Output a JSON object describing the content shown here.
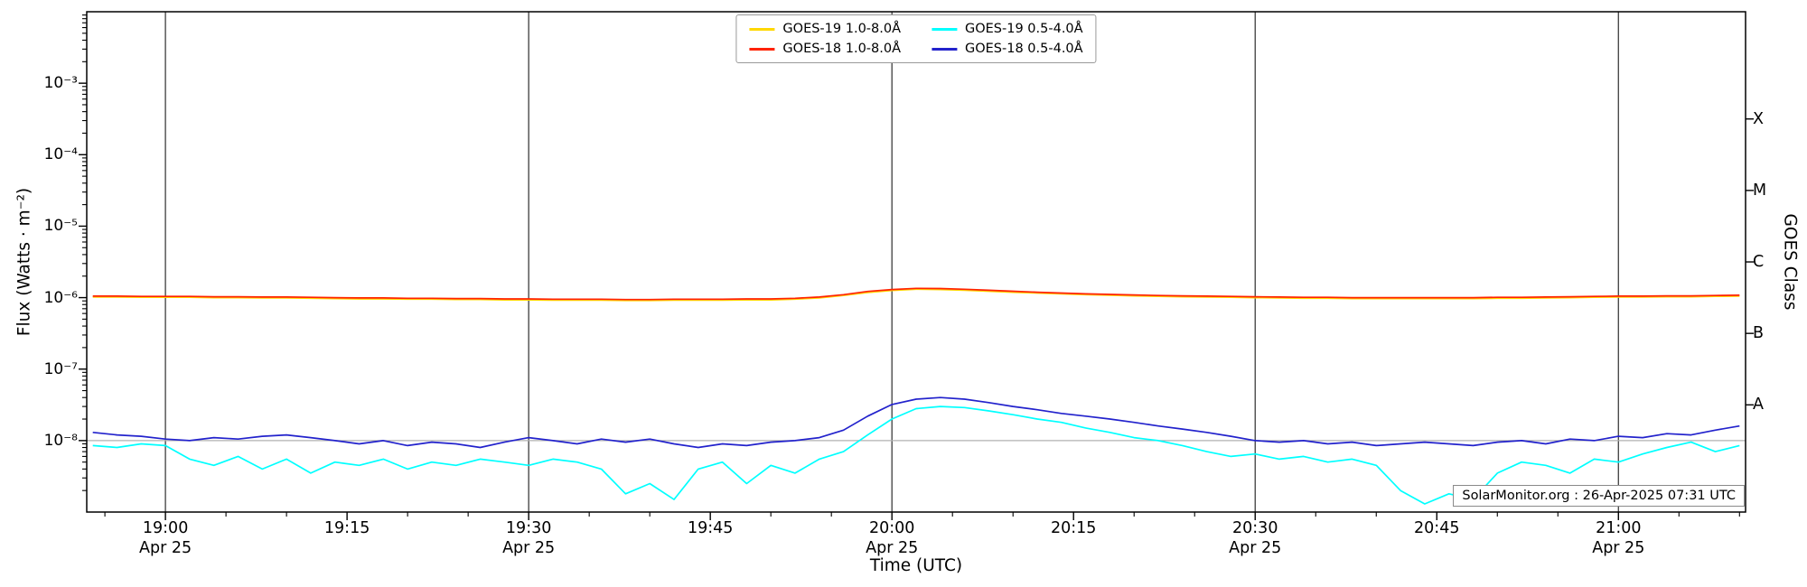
{
  "annotation": "SolarMonitor.org : 26-Apr-2025 07:31 UTC",
  "axes": {
    "x_label": "Time (UTC)",
    "y_label": "Flux (Watts · m⁻²)",
    "right_label": "GOES Class"
  },
  "chart_data": {
    "type": "line",
    "title": "",
    "xlabel": "Time (UTC)",
    "ylabel": "Flux (Watts · m⁻²)",
    "right_axis_label": "GOES Class",
    "y_scale": "log",
    "y_domain": [
      1e-09,
      0.01
    ],
    "x_unit": "minutes relative to 19:00 UTC on Apr 25",
    "x_domain_minutes": [
      -6.5,
      130.5
    ],
    "grid": {
      "vertical_minutes": [
        0,
        30,
        60,
        90,
        120
      ],
      "horizontal_values": [
        1e-08
      ]
    },
    "y_ticks": [
      {
        "value": 0.001,
        "label": "10⁻³"
      },
      {
        "value": 0.0001,
        "label": "10⁻⁴"
      },
      {
        "value": 1e-05,
        "label": "10⁻⁵"
      },
      {
        "value": 1e-06,
        "label": "10⁻⁶"
      },
      {
        "value": 1e-07,
        "label": "10⁻⁷"
      },
      {
        "value": 1e-08,
        "label": "10⁻⁸"
      }
    ],
    "x_ticks": [
      {
        "minute": 0,
        "label": "19:00",
        "date": "Apr 25"
      },
      {
        "minute": 15,
        "label": "19:15",
        "date": ""
      },
      {
        "minute": 30,
        "label": "19:30",
        "date": "Apr 25"
      },
      {
        "minute": 45,
        "label": "19:45",
        "date": ""
      },
      {
        "minute": 60,
        "label": "20:00",
        "date": "Apr 25"
      },
      {
        "minute": 75,
        "label": "20:15",
        "date": ""
      },
      {
        "minute": 90,
        "label": "20:30",
        "date": "Apr 25"
      },
      {
        "minute": 105,
        "label": "20:45",
        "date": ""
      },
      {
        "minute": 120,
        "label": "21:00",
        "date": "Apr 25"
      }
    ],
    "class_labels": [
      {
        "label": "X",
        "value": 0.000316
      },
      {
        "label": "M",
        "value": 3.16e-05
      },
      {
        "label": "C",
        "value": 3.16e-06
      },
      {
        "label": "B",
        "value": 3.16e-07
      },
      {
        "label": "A",
        "value": 3.16e-08
      }
    ],
    "legend_position": "upper center",
    "legend_column_major": [
      0,
      1,
      2,
      3
    ],
    "x": [
      -6,
      -4,
      -2,
      0,
      2,
      4,
      6,
      8,
      10,
      12,
      14,
      16,
      18,
      20,
      22,
      24,
      26,
      28,
      30,
      32,
      34,
      36,
      38,
      40,
      42,
      44,
      46,
      48,
      50,
      52,
      54,
      56,
      58,
      60,
      62,
      64,
      66,
      68,
      70,
      72,
      74,
      76,
      78,
      80,
      82,
      84,
      86,
      88,
      90,
      92,
      94,
      96,
      98,
      100,
      102,
      104,
      106,
      108,
      110,
      112,
      114,
      116,
      118,
      120,
      122,
      124,
      126,
      128,
      130
    ],
    "series": [
      {
        "name": "GOES-19 1.0-8.0Å",
        "color": "#ffd700",
        "values": [
          1.02e-06,
          1.02e-06,
          1.01e-06,
          1.01e-06,
          1.01e-06,
          1e-06,
          1e-06,
          9.9e-07,
          9.9e-07,
          9.8e-07,
          9.7e-07,
          9.6e-07,
          9.6e-07,
          9.5e-07,
          9.5e-07,
          9.4e-07,
          9.4e-07,
          9.3e-07,
          9.3e-07,
          9.2e-07,
          9.2e-07,
          9.2e-07,
          9.1e-07,
          9.1e-07,
          9.2e-07,
          9.2e-07,
          9.2e-07,
          9.3e-07,
          9.3e-07,
          9.5e-07,
          9.9e-07,
          1.07e-06,
          1.18e-06,
          1.26e-06,
          1.31e-06,
          1.3e-06,
          1.27e-06,
          1.23e-06,
          1.19e-06,
          1.16e-06,
          1.13e-06,
          1.1e-06,
          1.08e-06,
          1.06e-06,
          1.04e-06,
          1.03e-06,
          1.02e-06,
          1.01e-06,
          1e-06,
          9.9e-07,
          9.8e-07,
          9.8e-07,
          9.7e-07,
          9.7e-07,
          9.7e-07,
          9.7e-07,
          9.7e-07,
          9.7e-07,
          9.8e-07,
          9.8e-07,
          9.9e-07,
          1e-06,
          1.01e-06,
          1.02e-06,
          1.02e-06,
          1.03e-06,
          1.03e-06,
          1.04e-06,
          1.05e-06
        ]
      },
      {
        "name": "GOES-18 1.0-8.0Å",
        "color": "#ff2200",
        "values": [
          1.05e-06,
          1.05e-06,
          1.04e-06,
          1.04e-06,
          1.04e-06,
          1.03e-06,
          1.03e-06,
          1.02e-06,
          1.02e-06,
          1.01e-06,
          1e-06,
          9.9e-07,
          9.9e-07,
          9.8e-07,
          9.8e-07,
          9.7e-07,
          9.7e-07,
          9.6e-07,
          9.6e-07,
          9.5e-07,
          9.5e-07,
          9.5e-07,
          9.4e-07,
          9.4e-07,
          9.5e-07,
          9.5e-07,
          9.5e-07,
          9.6e-07,
          9.6e-07,
          9.8e-07,
          1.02e-06,
          1.1e-06,
          1.22e-06,
          1.3e-06,
          1.35e-06,
          1.34e-06,
          1.31e-06,
          1.27e-06,
          1.23e-06,
          1.19e-06,
          1.16e-06,
          1.13e-06,
          1.11e-06,
          1.09e-06,
          1.07e-06,
          1.06e-06,
          1.05e-06,
          1.04e-06,
          1.03e-06,
          1.02e-06,
          1.01e-06,
          1.01e-06,
          1e-06,
          1e-06,
          1e-06,
          1e-06,
          1e-06,
          1e-06,
          1.01e-06,
          1.01e-06,
          1.02e-06,
          1.03e-06,
          1.04e-06,
          1.05e-06,
          1.05e-06,
          1.06e-06,
          1.06e-06,
          1.07e-06,
          1.08e-06
        ]
      },
      {
        "name": "GOES-19 0.5-4.0Å",
        "color": "#00ffff",
        "values": [
          8.5e-09,
          8e-09,
          9e-09,
          8.5e-09,
          5.5e-09,
          4.5e-09,
          6e-09,
          4e-09,
          5.5e-09,
          3.5e-09,
          5e-09,
          4.5e-09,
          5.5e-09,
          4e-09,
          5e-09,
          4.5e-09,
          5.5e-09,
          5e-09,
          4.5e-09,
          5.5e-09,
          5e-09,
          4e-09,
          1.8e-09,
          2.5e-09,
          1.5e-09,
          4e-09,
          5e-09,
          2.5e-09,
          4.5e-09,
          3.5e-09,
          5.5e-09,
          7e-09,
          1.2e-08,
          2e-08,
          2.8e-08,
          3e-08,
          2.9e-08,
          2.6e-08,
          2.3e-08,
          2e-08,
          1.8e-08,
          1.5e-08,
          1.3e-08,
          1.1e-08,
          1e-08,
          8.5e-09,
          7e-09,
          6e-09,
          6.5e-09,
          5.5e-09,
          6e-09,
          5e-09,
          5.5e-09,
          4.5e-09,
          2e-09,
          1.3e-09,
          1.8e-09,
          1.5e-09,
          3.5e-09,
          5e-09,
          4.5e-09,
          3.5e-09,
          5.5e-09,
          5e-09,
          6.5e-09,
          8e-09,
          9.5e-09,
          7e-09,
          8.5e-09
        ]
      },
      {
        "name": "GOES-18 0.5-4.0Å",
        "color": "#2222cc",
        "values": [
          1.3e-08,
          1.2e-08,
          1.15e-08,
          1.05e-08,
          1e-08,
          1.1e-08,
          1.05e-08,
          1.15e-08,
          1.2e-08,
          1.1e-08,
          1e-08,
          9e-09,
          1e-08,
          8.5e-09,
          9.5e-09,
          9e-09,
          8e-09,
          9.5e-09,
          1.1e-08,
          1e-08,
          9e-09,
          1.05e-08,
          9.5e-09,
          1.05e-08,
          9e-09,
          8e-09,
          9e-09,
          8.5e-09,
          9.5e-09,
          1e-08,
          1.1e-08,
          1.4e-08,
          2.2e-08,
          3.2e-08,
          3.8e-08,
          4e-08,
          3.8e-08,
          3.4e-08,
          3e-08,
          2.7e-08,
          2.4e-08,
          2.2e-08,
          2e-08,
          1.8e-08,
          1.6e-08,
          1.45e-08,
          1.3e-08,
          1.15e-08,
          1e-08,
          9.5e-09,
          1e-08,
          9e-09,
          9.5e-09,
          8.5e-09,
          9e-09,
          9.5e-09,
          9e-09,
          8.5e-09,
          9.5e-09,
          1e-08,
          9e-09,
          1.05e-08,
          1e-08,
          1.15e-08,
          1.1e-08,
          1.25e-08,
          1.2e-08,
          1.4e-08,
          1.6e-08
        ]
      }
    ],
    "colors": {
      "grid_vertical": "#3d3d3d",
      "grid_horizontal": "#b0b0b0",
      "axis": "#000000"
    }
  }
}
